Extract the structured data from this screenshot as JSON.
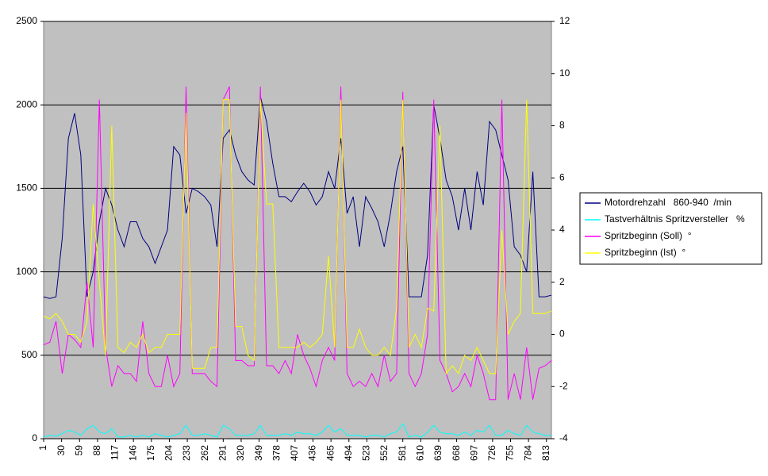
{
  "chart_data": {
    "type": "line",
    "x": [
      1,
      11,
      21,
      31,
      41,
      51,
      61,
      71,
      81,
      91,
      101,
      111,
      121,
      131,
      141,
      151,
      161,
      171,
      181,
      191,
      201,
      211,
      221,
      231,
      241,
      251,
      261,
      271,
      281,
      291,
      301,
      311,
      321,
      331,
      341,
      351,
      361,
      371,
      381,
      391,
      401,
      411,
      421,
      431,
      441,
      451,
      461,
      471,
      481,
      491,
      501,
      511,
      521,
      531,
      541,
      551,
      561,
      571,
      581,
      591,
      601,
      611,
      621,
      631,
      641,
      651,
      661,
      671,
      681,
      691,
      701,
      711,
      721,
      731,
      741,
      751,
      761,
      771,
      781,
      791,
      801,
      811,
      821
    ],
    "xlim": [
      1,
      821
    ],
    "xticks": [
      1,
      30,
      59,
      88,
      117,
      146,
      175,
      204,
      233,
      262,
      291,
      320,
      349,
      378,
      407,
      436,
      465,
      494,
      523,
      552,
      581,
      610,
      639,
      668,
      697,
      726,
      755,
      784,
      813
    ],
    "ylim": [
      0,
      2500
    ],
    "yticks": [
      0,
      500,
      1000,
      1500,
      2000,
      2500
    ],
    "y2lim": [
      -4,
      12
    ],
    "y2ticks": [
      -4,
      -2,
      0,
      2,
      4,
      6,
      8,
      10,
      12
    ],
    "grid": true,
    "legend": "right",
    "series": [
      {
        "name": "Motordrehzahl   860-940  /min",
        "color": "#000080",
        "values": [
          850,
          840,
          850,
          1200,
          1800,
          1950,
          1700,
          850,
          1000,
          1300,
          1500,
          1400,
          1250,
          1150,
          1300,
          1300,
          1200,
          1150,
          1050,
          1150,
          1250,
          1750,
          1700,
          1350,
          1500,
          1480,
          1450,
          1400,
          1150,
          1800,
          1850,
          1700,
          1600,
          1550,
          1520,
          2050,
          1900,
          1650,
          1450,
          1450,
          1420,
          1480,
          1530,
          1480,
          1400,
          1450,
          1600,
          1500,
          1800,
          1350,
          1450,
          1150,
          1450,
          1380,
          1300,
          1150,
          1350,
          1600,
          1750,
          850,
          850,
          850,
          1100,
          2000,
          1800,
          1550,
          1450,
          1250,
          1500,
          1250,
          1600,
          1400,
          1900,
          1850,
          1700,
          1550,
          1150,
          1100,
          1000,
          1600,
          850,
          850,
          860
        ]
      },
      {
        "name": "Tastverhältnis Spritzversteller   %",
        "color": "#00ffff",
        "values": [
          10,
          20,
          15,
          30,
          50,
          40,
          20,
          60,
          80,
          40,
          30,
          60,
          10,
          10,
          20,
          10,
          20,
          10,
          30,
          20,
          10,
          20,
          30,
          80,
          20,
          20,
          30,
          20,
          10,
          80,
          60,
          20,
          20,
          20,
          30,
          80,
          20,
          20,
          20,
          30,
          20,
          40,
          30,
          30,
          20,
          40,
          80,
          40,
          60,
          20,
          20,
          20,
          10,
          20,
          20,
          10,
          30,
          40,
          90,
          10,
          20,
          10,
          40,
          80,
          40,
          30,
          30,
          20,
          40,
          20,
          50,
          40,
          80,
          20,
          20,
          50,
          30,
          20,
          80,
          40,
          30,
          20,
          20
        ]
      },
      {
        "name": "Spritzbeginn (Soll)  °",
        "color": "#ff00ff",
        "axis": "y2",
        "values": [
          -0.4,
          -0.3,
          0.5,
          -1.5,
          0,
          -0.2,
          -0.5,
          2,
          -0.5,
          9,
          -0.5,
          -2,
          -1.2,
          -1.5,
          -1.5,
          -1.8,
          0.5,
          -1.5,
          -2,
          -2,
          -0.8,
          -2,
          -1.5,
          9.5,
          -1.5,
          -1.5,
          -1.5,
          -1.8,
          -2,
          9,
          9.5,
          -1,
          -1,
          -1.2,
          -1.2,
          9.5,
          -1.2,
          -1.2,
          -1.5,
          -1,
          -1.5,
          0,
          -0.8,
          -1.3,
          -2,
          -1,
          -0.5,
          -1,
          9.5,
          -1.5,
          -2,
          -1.8,
          -2,
          -1.5,
          -2,
          -0.8,
          -1.8,
          -1.5,
          9.3,
          -1.5,
          -2,
          -1.5,
          0,
          9,
          -1,
          -1.5,
          -2.2,
          -2,
          -1.5,
          -2,
          -0.8,
          -1.5,
          -2.5,
          -2.5,
          9,
          -2.5,
          -1.5,
          -2.5,
          -0.5,
          -2.5,
          -1.3,
          -1.2,
          -1
        ]
      },
      {
        "name": "Spritzbeginn (Ist)  °",
        "color": "#ffff00",
        "axis": "y2",
        "values": [
          0.7,
          0.6,
          0.8,
          0.5,
          0,
          0,
          -0.3,
          0.5,
          5,
          2,
          -0.8,
          8,
          -0.5,
          -0.7,
          -0.3,
          -0.5,
          0,
          -0.7,
          -0.5,
          -0.5,
          0,
          0,
          0,
          8.5,
          -1.3,
          -1.3,
          -1.3,
          -0.5,
          -0.5,
          9,
          9,
          0.3,
          0.3,
          -0.8,
          -1,
          9,
          5,
          5,
          -0.5,
          -0.5,
          -0.5,
          -0.5,
          -0.3,
          -0.5,
          -0.3,
          0,
          3,
          -0.5,
          9,
          -0.5,
          -0.5,
          0.2,
          -0.5,
          -0.8,
          -0.8,
          -0.5,
          -0.8,
          1,
          9,
          -0.5,
          0,
          -0.5,
          1,
          0.9,
          8,
          -1.5,
          -1.2,
          -1.5,
          -0.8,
          -1,
          -0.5,
          -1,
          -1.5,
          -1.5,
          4,
          0,
          0.5,
          0.8,
          9,
          0.8,
          0.8,
          0.8,
          0.9
        ]
      }
    ]
  }
}
